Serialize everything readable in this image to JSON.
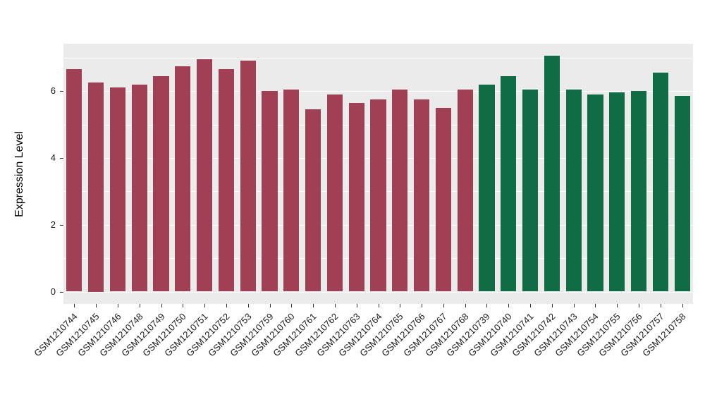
{
  "chart_data": {
    "type": "bar",
    "title": "",
    "xlabel": "",
    "ylabel": "Expression Level",
    "ylim": [
      0,
      7.4
    ],
    "yticks": [
      0,
      2,
      4,
      6
    ],
    "minor_yticks": [
      1,
      3,
      5,
      7
    ],
    "grid": "on",
    "legend_position": "none",
    "categories": [
      "GSM1210744",
      "GSM1210745",
      "GSM1210746",
      "GSM1210748",
      "GSM1210749",
      "GSM1210750",
      "GSM1210751",
      "GSM1210752",
      "GSM1210753",
      "GSM1210759",
      "GSM1210760",
      "GSM1210761",
      "GSM1210762",
      "GSM1210763",
      "GSM1210764",
      "GSM1210765",
      "GSM1210766",
      "GSM1210767",
      "GSM1210768",
      "GSM1210739",
      "GSM1210740",
      "GSM1210741",
      "GSM1210742",
      "GSM1210743",
      "GSM1210754",
      "GSM1210755",
      "GSM1210756",
      "GSM1210757",
      "GSM1210758"
    ],
    "values": [
      6.65,
      6.25,
      6.1,
      6.2,
      6.45,
      6.75,
      6.95,
      6.65,
      6.9,
      6.0,
      6.05,
      5.45,
      5.9,
      5.65,
      5.75,
      6.05,
      5.75,
      5.5,
      6.05,
      6.2,
      6.45,
      6.05,
      7.05,
      6.05,
      5.9,
      5.95,
      6.0,
      6.55,
      5.85
    ],
    "bar_groups": [
      0,
      0,
      0,
      0,
      0,
      0,
      0,
      0,
      0,
      0,
      0,
      0,
      0,
      0,
      0,
      0,
      0,
      0,
      0,
      1,
      1,
      1,
      1,
      1,
      1,
      1,
      1,
      1,
      1
    ],
    "group_colors": [
      "#A13F55",
      "#106C45"
    ],
    "colors": {
      "panel_background": "#EBEBEB",
      "grid": "#FFFFFF",
      "page_background": "#FFFFFF",
      "tick": "#333333",
      "axis_text": "#1A1A1A"
    }
  }
}
